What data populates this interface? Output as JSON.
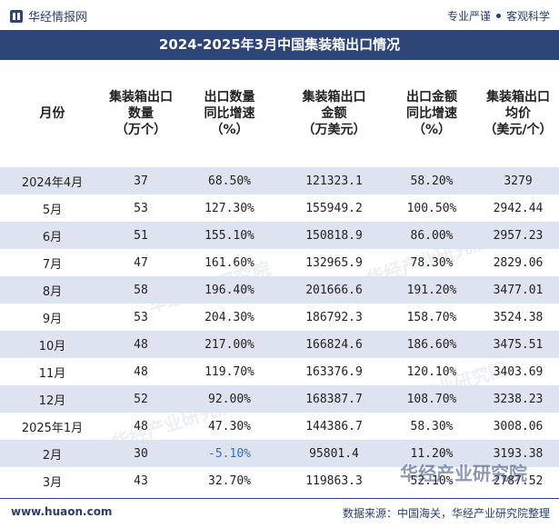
{
  "header": {
    "logo_text": "华经情报网",
    "slogan_left": "专业严谨",
    "slogan_right": "客观科学"
  },
  "title": "2024-2025年3月中国集装箱出口情况",
  "columns": [
    {
      "line1": "月份",
      "line2": "",
      "line3": ""
    },
    {
      "line1": "集装箱出口",
      "line2": "数量",
      "line3": "（万个）"
    },
    {
      "line1": "出口数量",
      "line2": "同比增速",
      "line3": "（%）"
    },
    {
      "line1": "集装箱出口",
      "line2": "金额",
      "line3": "（万美元）"
    },
    {
      "line1": "出口金额",
      "line2": "同比增速",
      "line3": "（%）"
    },
    {
      "line1": "集装箱出口",
      "line2": "均价",
      "line3": "（美元/个）"
    }
  ],
  "rows": [
    {
      "month": "2024年4月",
      "qty": "37",
      "qty_yoy": "68.50%",
      "amount": "121323.1",
      "amount_yoy": "58.20%",
      "price": "3279"
    },
    {
      "month": "5月",
      "qty": "53",
      "qty_yoy": "127.30%",
      "amount": "155949.2",
      "amount_yoy": "100.50%",
      "price": "2942.44"
    },
    {
      "month": "6月",
      "qty": "51",
      "qty_yoy": "155.10%",
      "amount": "150818.9",
      "amount_yoy": "86.00%",
      "price": "2957.23"
    },
    {
      "month": "7月",
      "qty": "47",
      "qty_yoy": "161.60%",
      "amount": "132965.9",
      "amount_yoy": "78.30%",
      "price": "2829.06"
    },
    {
      "month": "8月",
      "qty": "58",
      "qty_yoy": "196.40%",
      "amount": "201666.6",
      "amount_yoy": "191.20%",
      "price": "3477.01"
    },
    {
      "month": "9月",
      "qty": "53",
      "qty_yoy": "204.30%",
      "amount": "186792.3",
      "amount_yoy": "158.70%",
      "price": "3524.38"
    },
    {
      "month": "10月",
      "qty": "48",
      "qty_yoy": "217.00%",
      "amount": "166824.6",
      "amount_yoy": "186.60%",
      "price": "3475.51"
    },
    {
      "month": "11月",
      "qty": "48",
      "qty_yoy": "119.70%",
      "amount": "163376.9",
      "amount_yoy": "120.10%",
      "price": "3403.69"
    },
    {
      "month": "12月",
      "qty": "52",
      "qty_yoy": "92.00%",
      "amount": "168387.7",
      "amount_yoy": "108.70%",
      "price": "3238.23"
    },
    {
      "month": "2025年1月",
      "qty": "48",
      "qty_yoy": "47.30%",
      "amount": "144386.7",
      "amount_yoy": "58.30%",
      "price": "3008.06"
    },
    {
      "month": "2月",
      "qty": "30",
      "qty_yoy": "-5.10%",
      "amount": "95801.4",
      "amount_yoy": "11.20%",
      "price": "3193.38"
    },
    {
      "month": "3月",
      "qty": "43",
      "qty_yoy": "32.70%",
      "amount": "119863.3",
      "amount_yoy": "52.10%",
      "price": "2787.52"
    }
  ],
  "footer": {
    "url": "www.huaon.com",
    "source": "数据来源：中国海关，华经产业研究院整理"
  },
  "watermark": "华经产业研究院",
  "colors": {
    "title_bg": "#2e4677",
    "stripe": "#dde4f0",
    "negative": "#3a6fc4"
  }
}
